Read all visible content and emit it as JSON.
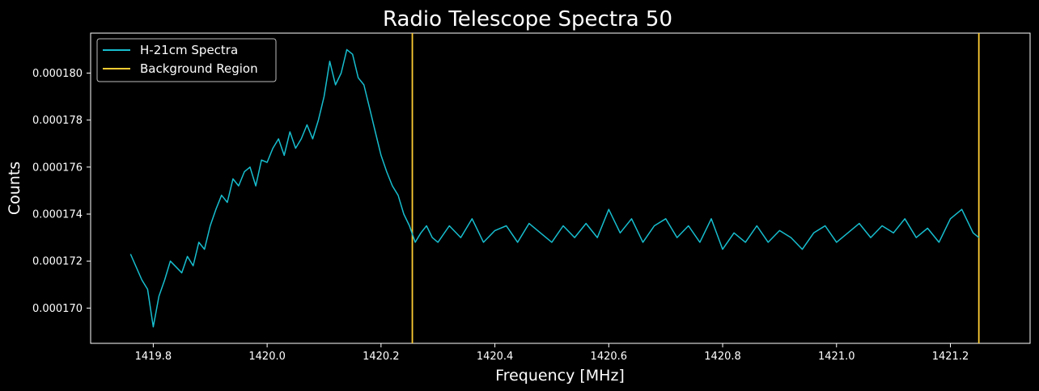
{
  "chart_data": {
    "type": "line",
    "title": "Radio Telescope Spectra 50",
    "xlabel": "Frequency [MHz]",
    "ylabel": "Counts",
    "xlim": [
      1419.69,
      1421.34
    ],
    "ylim": [
      0.0001685,
      0.0001817
    ],
    "x_ticks": [
      1419.8,
      1420.0,
      1420.2,
      1420.4,
      1420.6,
      1420.8,
      1421.0,
      1421.2
    ],
    "x_tick_labels": [
      "1419.8",
      "1420.0",
      "1420.2",
      "1420.4",
      "1420.6",
      "1420.8",
      "1421.0",
      "1421.2"
    ],
    "y_ticks": [
      0.00017,
      0.000172,
      0.000174,
      0.000176,
      0.000178,
      0.00018
    ],
    "y_tick_labels": [
      "0.000170",
      "0.000172",
      "0.000174",
      "0.000176",
      "0.000178",
      "0.000180"
    ],
    "grid": false,
    "legend_position": "top-left",
    "background_color": "#000000",
    "series": [
      {
        "name": "H-21cm Spectra",
        "color": "#17becf",
        "x": [
          1419.76,
          1419.78,
          1419.79,
          1419.8,
          1419.81,
          1419.82,
          1419.83,
          1419.85,
          1419.86,
          1419.87,
          1419.88,
          1419.89,
          1419.9,
          1419.91,
          1419.92,
          1419.93,
          1419.94,
          1419.95,
          1419.96,
          1419.97,
          1419.98,
          1419.99,
          1420.0,
          1420.01,
          1420.02,
          1420.03,
          1420.04,
          1420.05,
          1420.06,
          1420.07,
          1420.08,
          1420.09,
          1420.1,
          1420.11,
          1420.12,
          1420.13,
          1420.14,
          1420.15,
          1420.16,
          1420.17,
          1420.18,
          1420.19,
          1420.2,
          1420.21,
          1420.22,
          1420.23,
          1420.24,
          1420.25,
          1420.26,
          1420.27,
          1420.28,
          1420.29,
          1420.3,
          1420.32,
          1420.34,
          1420.36,
          1420.38,
          1420.4,
          1420.42,
          1420.44,
          1420.46,
          1420.48,
          1420.5,
          1420.52,
          1420.54,
          1420.56,
          1420.58,
          1420.6,
          1420.62,
          1420.64,
          1420.66,
          1420.68,
          1420.7,
          1420.72,
          1420.74,
          1420.76,
          1420.78,
          1420.8,
          1420.82,
          1420.84,
          1420.86,
          1420.88,
          1420.9,
          1420.92,
          1420.94,
          1420.96,
          1420.98,
          1421.0,
          1421.02,
          1421.04,
          1421.06,
          1421.08,
          1421.1,
          1421.12,
          1421.14,
          1421.16,
          1421.18,
          1421.2,
          1421.22,
          1421.24,
          1421.25
        ],
        "values": [
          0.0001723,
          0.0001712,
          0.0001708,
          0.0001692,
          0.0001705,
          0.0001712,
          0.000172,
          0.0001715,
          0.0001722,
          0.0001718,
          0.0001728,
          0.0001725,
          0.0001735,
          0.0001742,
          0.0001748,
          0.0001745,
          0.0001755,
          0.0001752,
          0.0001758,
          0.000176,
          0.0001752,
          0.0001763,
          0.0001762,
          0.0001768,
          0.0001772,
          0.0001765,
          0.0001775,
          0.0001768,
          0.0001772,
          0.0001778,
          0.0001772,
          0.000178,
          0.000179,
          0.0001805,
          0.0001795,
          0.00018,
          0.000181,
          0.0001808,
          0.0001798,
          0.0001795,
          0.0001785,
          0.0001775,
          0.0001765,
          0.0001758,
          0.0001752,
          0.0001748,
          0.000174,
          0.0001735,
          0.0001728,
          0.0001732,
          0.0001735,
          0.000173,
          0.0001728,
          0.0001735,
          0.000173,
          0.0001738,
          0.0001728,
          0.0001733,
          0.0001735,
          0.0001728,
          0.0001736,
          0.0001732,
          0.0001728,
          0.0001735,
          0.000173,
          0.0001736,
          0.000173,
          0.0001742,
          0.0001732,
          0.0001738,
          0.0001728,
          0.0001735,
          0.0001738,
          0.000173,
          0.0001735,
          0.0001728,
          0.0001738,
          0.0001725,
          0.0001732,
          0.0001728,
          0.0001735,
          0.0001728,
          0.0001733,
          0.000173,
          0.0001725,
          0.0001732,
          0.0001735,
          0.0001728,
          0.0001732,
          0.0001736,
          0.000173,
          0.0001735,
          0.0001732,
          0.0001738,
          0.000173,
          0.0001734,
          0.0001728,
          0.0001738,
          0.0001742,
          0.0001732,
          0.000173
        ]
      }
    ],
    "vertical_lines": {
      "name": "Background Region",
      "color": "#ffcc33",
      "x": [
        1420.255,
        1421.25
      ]
    }
  }
}
